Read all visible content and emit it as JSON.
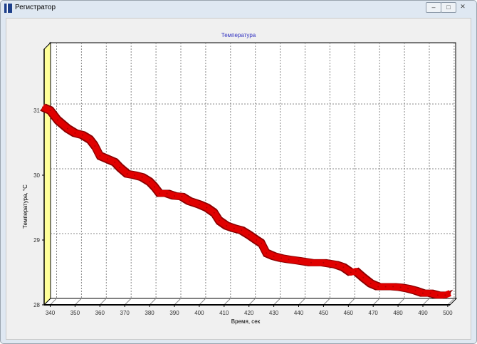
{
  "window": {
    "title": "Регистратор"
  },
  "chart_data": {
    "type": "line",
    "title": "Температура",
    "xlabel": "Время, сек",
    "ylabel": "Температура, °C",
    "xlim": [
      337,
      502
    ],
    "ylim": [
      28,
      31.8
    ],
    "xticks": [
      340,
      350,
      360,
      370,
      380,
      390,
      400,
      410,
      420,
      430,
      440,
      450,
      460,
      470,
      480,
      490,
      500
    ],
    "yticks": [
      28,
      29,
      30,
      31
    ],
    "grid": true,
    "colors": {
      "series": "#e00000",
      "wall": "#ffff99",
      "title": "#3030c0"
    },
    "x": [
      337,
      340,
      343,
      347,
      350,
      353,
      356,
      358,
      360,
      363,
      366,
      368,
      371,
      374,
      377,
      380,
      382,
      384,
      387,
      390,
      393,
      396,
      400,
      403,
      406,
      408,
      411,
      414,
      417,
      420,
      423,
      425,
      427,
      430,
      433,
      436,
      440,
      445,
      450,
      455,
      458,
      461,
      463,
      466,
      469,
      472,
      475,
      478,
      481,
      484,
      487,
      490,
      493,
      496,
      499,
      501
    ],
    "y": [
      31.05,
      31.0,
      30.85,
      30.72,
      30.65,
      30.62,
      30.55,
      30.45,
      30.3,
      30.25,
      30.2,
      30.12,
      30.02,
      30.0,
      29.97,
      29.9,
      29.82,
      29.72,
      29.72,
      29.68,
      29.67,
      29.6,
      29.55,
      29.5,
      29.42,
      29.3,
      29.22,
      29.18,
      29.15,
      29.08,
      29.0,
      28.95,
      28.8,
      28.75,
      28.72,
      28.7,
      28.68,
      28.65,
      28.65,
      28.62,
      28.58,
      28.5,
      28.52,
      28.42,
      28.33,
      28.28,
      28.28,
      28.28,
      28.27,
      28.25,
      28.22,
      28.18,
      28.18,
      28.15,
      28.15,
      28.18
    ]
  }
}
